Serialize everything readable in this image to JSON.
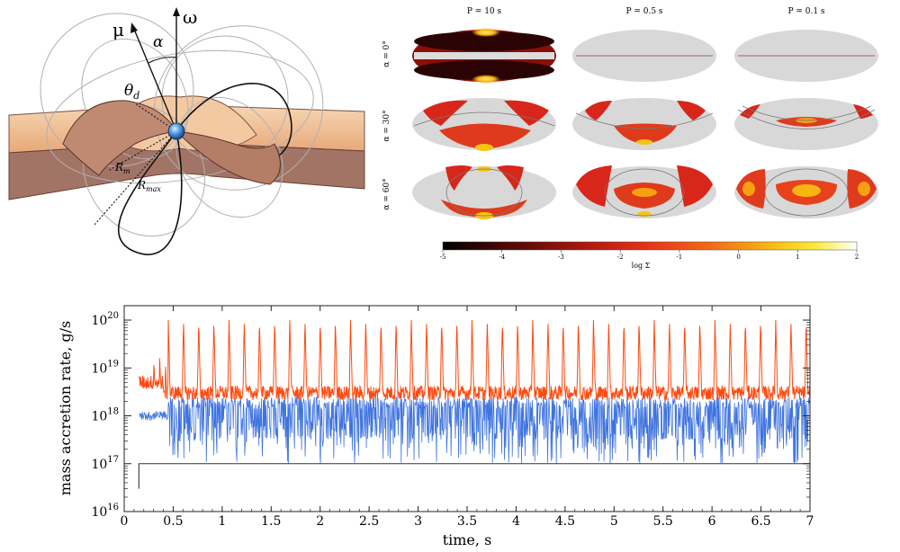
{
  "diagram": {
    "mu": "μ",
    "omega": "ω",
    "alpha": "α",
    "theta": "θ",
    "theta_sub": "d",
    "r_m": "R",
    "r_m_sub": "m",
    "r_max": "R",
    "r_max_sub": "max"
  },
  "maps": {
    "columns": [
      "P = 10 s",
      "P = 0.5 s",
      "P = 0.1 s"
    ],
    "rows": [
      "α = 0°",
      "α = 30°",
      "α = 60°"
    ],
    "colorbar": {
      "label": "log Σ",
      "ticks": [
        "-5",
        "-4",
        "-3",
        "-2",
        "-1",
        "0",
        "1",
        "2"
      ],
      "min": -5,
      "max": 2
    }
  },
  "colors": {
    "series_red": "#ff4a10",
    "series_blue": "#3f74e0",
    "series_black": "#333333",
    "map_bg": "#d8d8d8",
    "disk_light": "#f2c49a",
    "disk_dark": "#a27466"
  },
  "chart_data": {
    "type": "line",
    "xlabel": "time, s",
    "ylabel": "mass accretion rate, g/s",
    "xlim": [
      0,
      7
    ],
    "ylim": [
      1e+16,
      2e+20
    ],
    "yscale": "log",
    "x_ticks": [
      "0",
      "0.5",
      "1",
      "1.5",
      "2",
      "2.5",
      "3",
      "3.5",
      "4",
      "4.5",
      "5",
      "5.5",
      "6",
      "6.5",
      "7"
    ],
    "y_ticks": [
      {
        "base": "10",
        "exp": "16"
      },
      {
        "base": "10",
        "exp": "17"
      },
      {
        "base": "10",
        "exp": "18"
      },
      {
        "base": "10",
        "exp": "19"
      },
      {
        "base": "10",
        "exp": "20"
      }
    ],
    "grid": false,
    "series": [
      {
        "color": "red",
        "baseline": 3e+18,
        "peak": 1e+20,
        "period": 0.155,
        "start": 0.15,
        "spike_start": 0.45
      },
      {
        "color": "blue",
        "baseline": 1e+18,
        "max": 2.5e+18,
        "min": 1e+17,
        "start": 0.15
      },
      {
        "color": "black",
        "value": 1e+17,
        "start": 0.15
      }
    ]
  }
}
